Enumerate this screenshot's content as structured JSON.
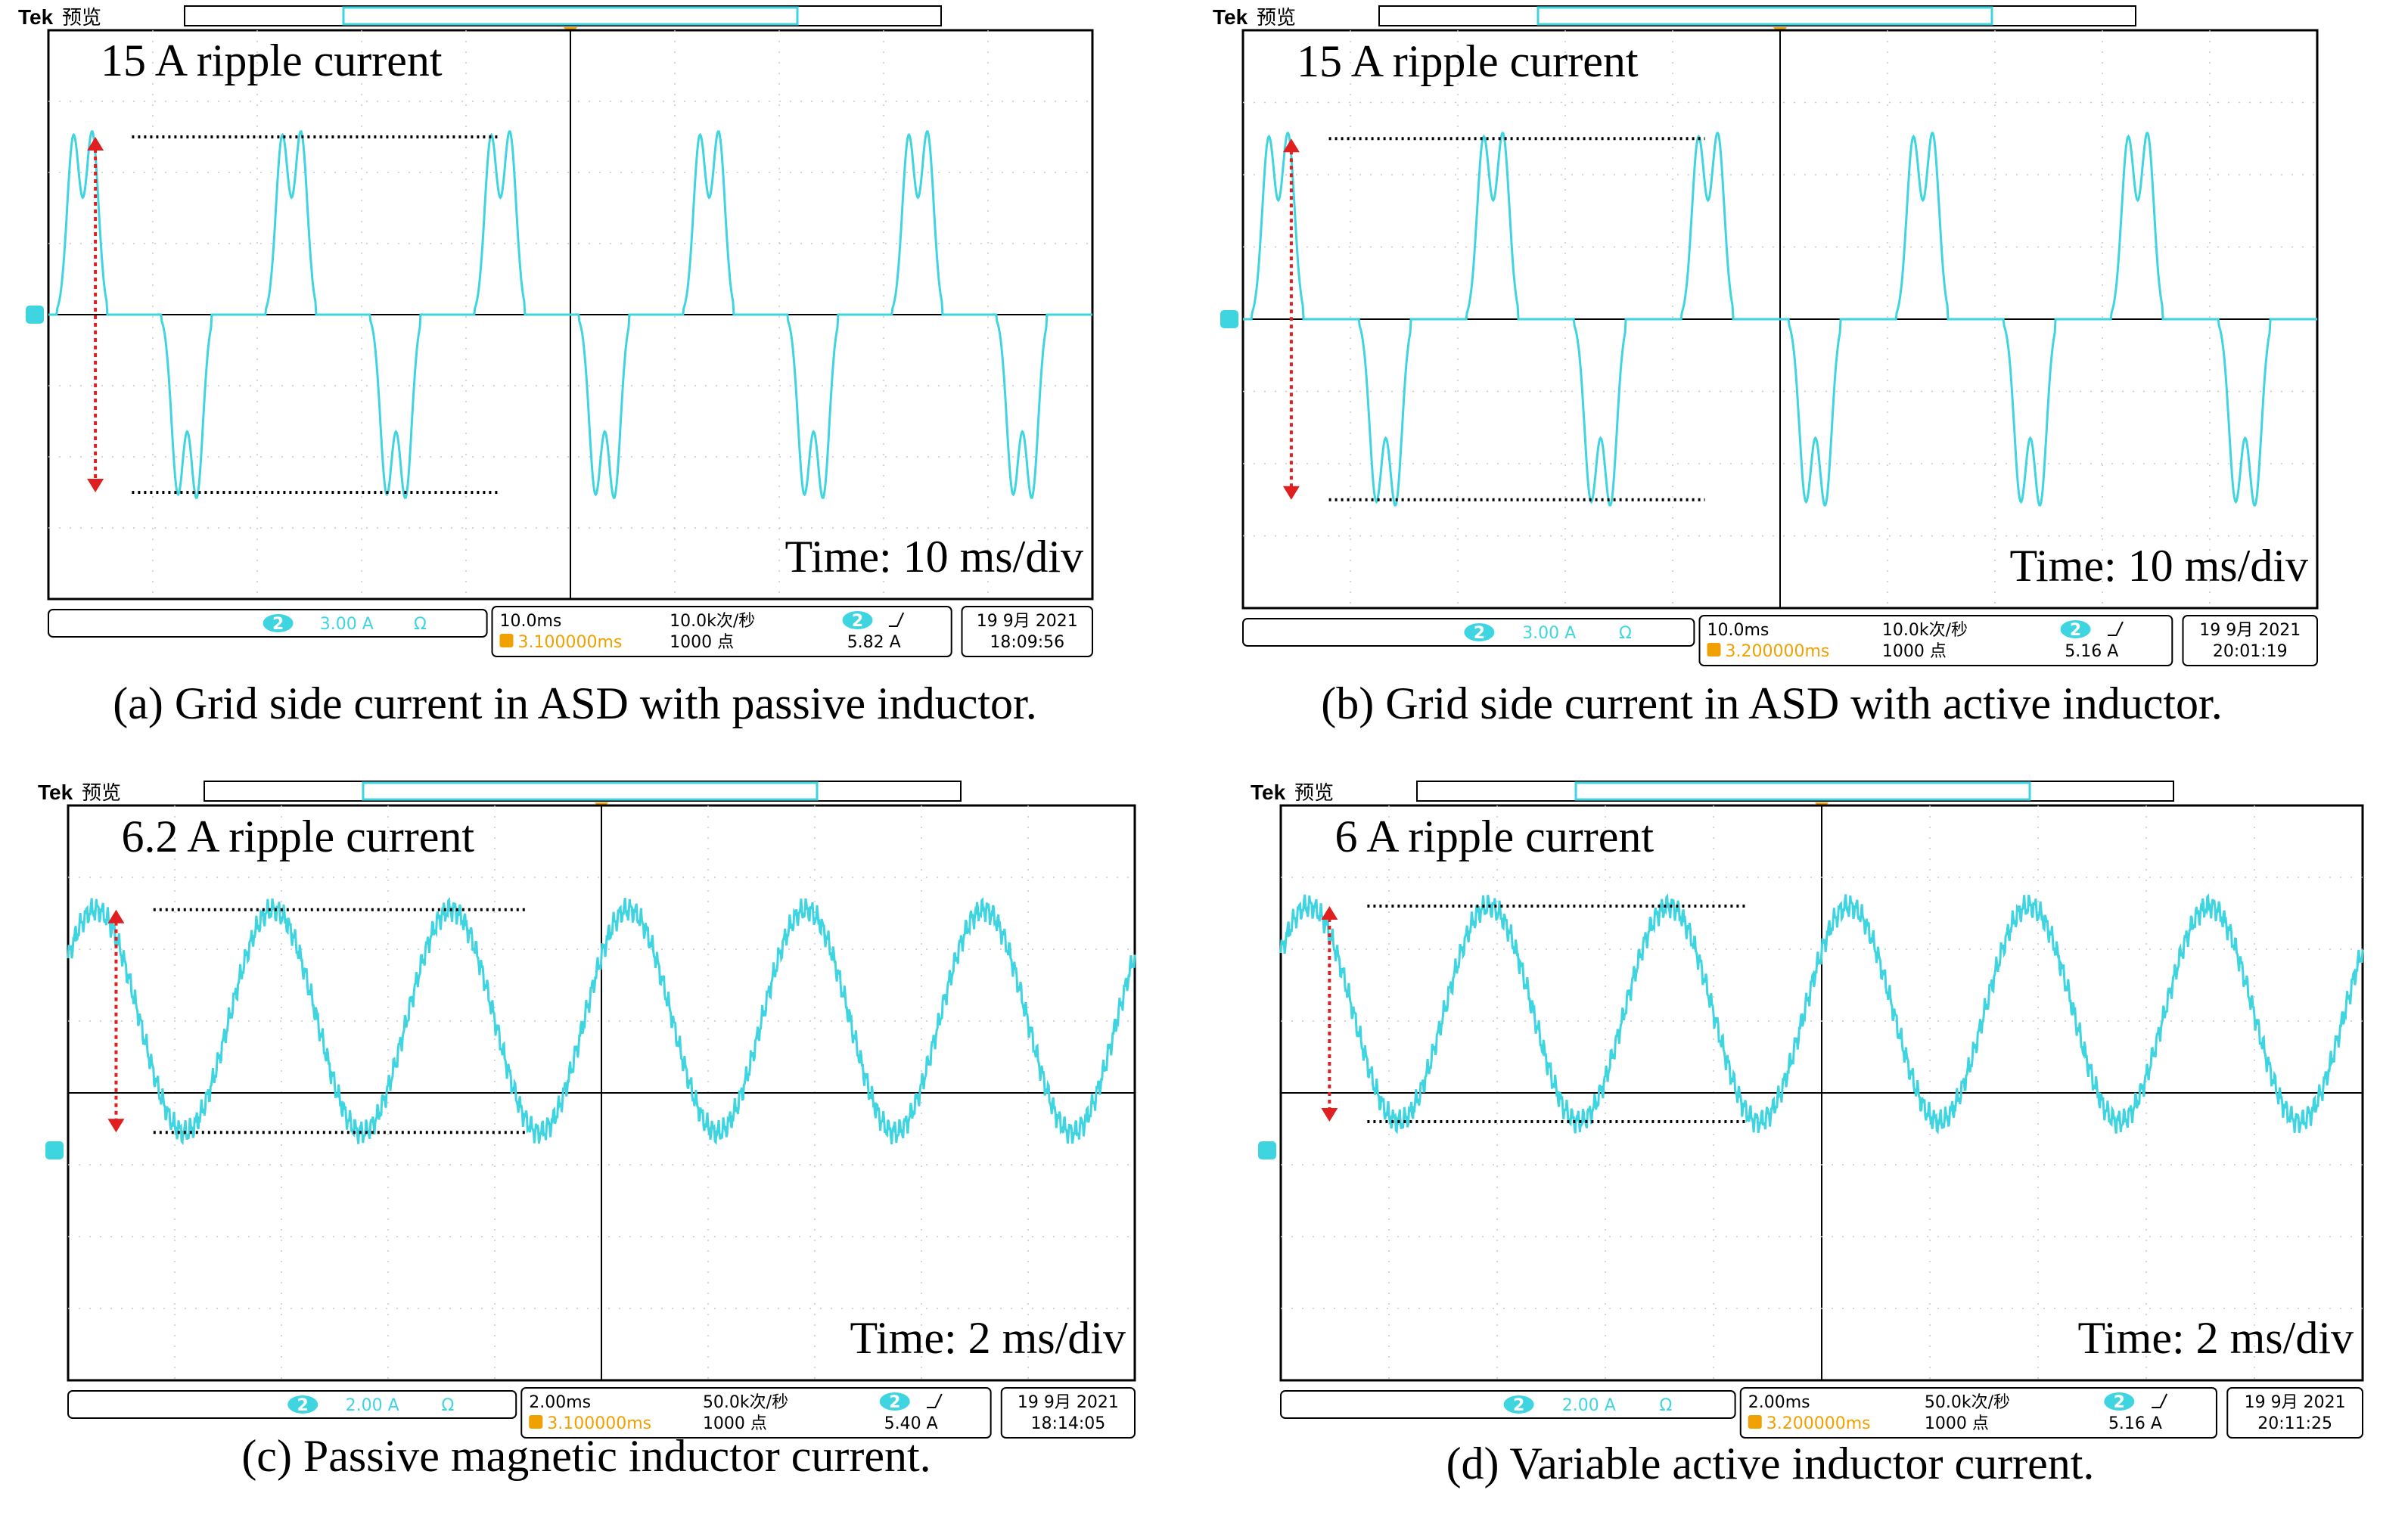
{
  "colors": {
    "trace": "#3fd5e0",
    "annotation_arrow": "#e02020",
    "trigger": "#f0a000",
    "grid": "#c9c9c9",
    "frame": "#000000"
  },
  "panels": [
    {
      "caption": "(a) Grid side current in ASD with passive inductor.",
      "brand": "Tek",
      "mode": "预览",
      "ripple_label": "15 A ripple current",
      "time_label": "Time: 10 ms/div",
      "status": {
        "channel": "2",
        "scale": "3.00 A",
        "coupling": "Ω",
        "timebase": "10.0ms",
        "sample_rate": "10.0k次/秒",
        "trigger_delay": "3.100000ms",
        "record_length": "1000 点",
        "trigger_level": "5.82 A",
        "date": "19 9月 2021",
        "time": "18:09:56"
      },
      "chart_data": {
        "type": "line",
        "waveform": "double-hump",
        "x_unit": "ms",
        "y_unit": "A",
        "time_per_div": 10,
        "amps_per_div": 3.0,
        "xlim": [
          0,
          100
        ],
        "ylim": [
          -12,
          12
        ],
        "period_ms": 20,
        "peak_current": 7.5,
        "ripple_pp": 15,
        "grid": true
      }
    },
    {
      "caption": "(b) Grid side current in ASD with active inductor.",
      "brand": "Tek",
      "mode": "预览",
      "ripple_label": "15 A ripple current",
      "time_label": "Time: 10 ms/div",
      "status": {
        "channel": "2",
        "scale": "3.00 A",
        "coupling": "Ω",
        "timebase": "10.0ms",
        "sample_rate": "10.0k次/秒",
        "trigger_delay": "3.200000ms",
        "record_length": "1000 点",
        "trigger_level": "5.16 A",
        "date": "19 9月 2021",
        "time": "20:01:19"
      },
      "chart_data": {
        "type": "line",
        "waveform": "double-hump",
        "x_unit": "ms",
        "y_unit": "A",
        "time_per_div": 10,
        "amps_per_div": 3.0,
        "xlim": [
          0,
          100
        ],
        "ylim": [
          -12,
          12
        ],
        "period_ms": 20,
        "peak_current": 7.5,
        "ripple_pp": 15,
        "grid": true
      }
    },
    {
      "caption": "(c) Passive magnetic inductor current.",
      "brand": "Tek",
      "mode": "预览",
      "ripple_label": "6.2 A ripple current",
      "time_label": "Time: 2 ms/div",
      "status": {
        "channel": "2",
        "scale": "2.00 A",
        "coupling": "Ω",
        "timebase": "2.00ms",
        "sample_rate": "50.0k次/秒",
        "trigger_delay": "3.100000ms",
        "record_length": "1000 点",
        "trigger_level": "5.40 A",
        "date": "19 9月 2021",
        "time": "18:14:05"
      },
      "chart_data": {
        "type": "line",
        "waveform": "sine-with-ripple",
        "x_unit": "ms",
        "y_unit": "A",
        "time_per_div": 2,
        "amps_per_div": 2.0,
        "xlim": [
          0,
          20
        ],
        "ylim": [
          -8,
          8
        ],
        "period_ms": 3.33,
        "dc_offset": 2.0,
        "peak_current": 3.1,
        "ripple_pp": 6.2,
        "grid": true
      }
    },
    {
      "caption": "(d) Variable active inductor current.",
      "brand": "Tek",
      "mode": "预览",
      "ripple_label": "6 A ripple current",
      "time_label": "Time: 2 ms/div",
      "status": {
        "channel": "2",
        "scale": "2.00 A",
        "coupling": "Ω",
        "timebase": "2.00ms",
        "sample_rate": "50.0k次/秒",
        "trigger_delay": "3.200000ms",
        "record_length": "1000 点",
        "trigger_level": "5.16 A",
        "date": "19 9月 2021",
        "time": "20:11:25"
      },
      "chart_data": {
        "type": "line",
        "waveform": "sine-with-ripple",
        "x_unit": "ms",
        "y_unit": "A",
        "time_per_div": 2,
        "amps_per_div": 2.0,
        "xlim": [
          0,
          20
        ],
        "ylim": [
          -8,
          8
        ],
        "period_ms": 3.33,
        "dc_offset": 2.2,
        "peak_current": 3.0,
        "ripple_pp": 6,
        "grid": true
      }
    }
  ]
}
